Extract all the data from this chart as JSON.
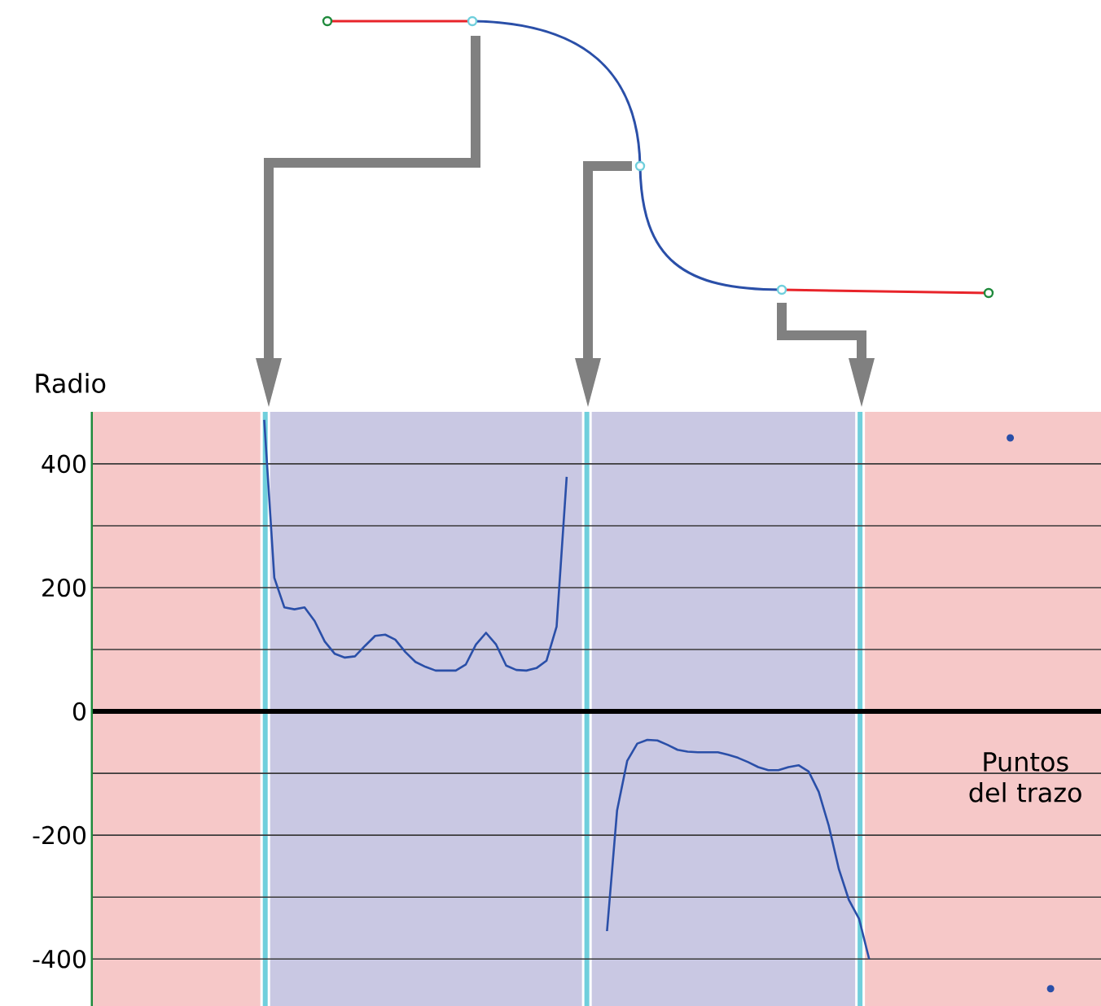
{
  "chart_data": {
    "type": "line",
    "ylabel": "Radio",
    "xlabel": "Puntos del trazo",
    "categories": [
      null,
      null,
      null,
      null,
      null,
      null,
      null,
      null,
      null,
      null,
      null,
      null,
      null,
      null,
      null,
      null,
      null,
      null,
      null,
      null,
      null,
      null,
      null,
      null,
      null,
      null,
      null,
      null,
      null,
      null,
      null,
      null,
      null,
      null,
      null,
      null,
      null,
      null,
      null,
      null,
      null,
      null,
      null,
      null,
      null,
      null,
      null,
      null,
      null,
      null,
      null,
      null,
      null,
      null,
      null,
      null,
      null,
      null,
      null,
      null,
      null,
      null,
      null,
      null,
      null,
      null,
      null,
      null,
      null,
      null,
      null,
      null,
      null,
      null,
      null,
      null,
      null,
      null,
      null,
      null,
      null,
      null,
      null,
      null,
      null,
      null,
      null,
      null,
      null,
      null,
      null,
      null,
      null,
      null,
      null,
      null,
      null,
      null,
      null,
      null,
      null
    ],
    "ylim": [
      -476,
      484
    ],
    "yticks": [
      400,
      {
        "value": 300,
        "label": null
      },
      200,
      {
        "value": 100,
        "label": null
      },
      0,
      {
        "value": -100,
        "label": null
      },
      -200,
      {
        "value": -300,
        "label": null
      },
      -400
    ],
    "grid": "y",
    "ref_lines": [
      {
        "axis": "y",
        "value": 0,
        "color": "#000000"
      }
    ],
    "series": [
      {
        "color": "#2a4fa8",
        "values": [
          null,
          null,
          null,
          null,
          null,
          null,
          null,
          null,
          null,
          null,
          null,
          null,
          null,
          null,
          null,
          null,
          null,
          471,
          216,
          168,
          165,
          168,
          146,
          113,
          93,
          87,
          89,
          106,
          122,
          124,
          116,
          96,
          80,
          72,
          66,
          66,
          66,
          76,
          108,
          127,
          108,
          74,
          67,
          66,
          70,
          82,
          137,
          379,
          null,
          null,
          null,
          -355,
          -160,
          -80,
          -52,
          -46,
          -47,
          -54,
          -62,
          -65,
          -66,
          -66,
          -66,
          -70,
          -75,
          -82,
          -90,
          -95,
          -95,
          -90,
          -87,
          -97,
          -130,
          -185,
          -255,
          -305,
          -335,
          -400,
          null,
          null,
          null,
          null,
          null,
          null,
          null,
          null,
          null,
          null,
          null,
          null,
          null,
          null,
          null,
          null,
          null,
          null,
          null,
          null,
          null,
          null,
          null
        ]
      },
      {
        "type": "scatter",
        "color": "#2a4fa8",
        "values": [
          null,
          null,
          null,
          null,
          null,
          null,
          null,
          null,
          null,
          null,
          null,
          null,
          null,
          null,
          null,
          null,
          null,
          null,
          null,
          null,
          null,
          null,
          null,
          null,
          null,
          null,
          null,
          null,
          null,
          null,
          null,
          null,
          null,
          null,
          null,
          null,
          null,
          null,
          null,
          null,
          null,
          null,
          null,
          null,
          null,
          null,
          null,
          null,
          null,
          null,
          null,
          null,
          null,
          null,
          null,
          null,
          null,
          null,
          null,
          null,
          null,
          null,
          null,
          null,
          null,
          null,
          null,
          null,
          null,
          null,
          null,
          null,
          null,
          null,
          null,
          null,
          null,
          null,
          null,
          null,
          null,
          null,
          null,
          null,
          null,
          null,
          null,
          null,
          null,
          null,
          null,
          442,
          null,
          null,
          null,
          -448,
          null,
          null,
          null,
          null,
          null
        ]
      }
    ]
  }
}
